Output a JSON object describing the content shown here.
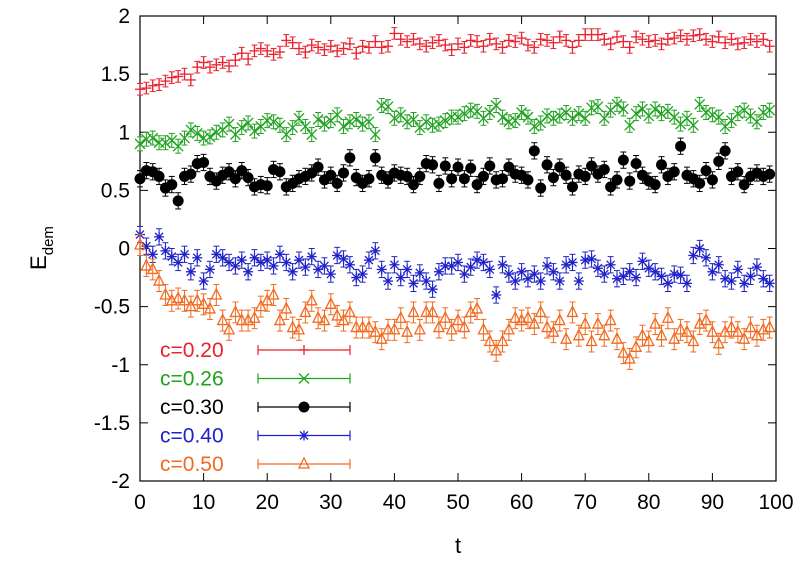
{
  "chart_data": {
    "type": "scatter",
    "xlabel": "t",
    "ylabel_main": "E",
    "ylabel_sub": "dem",
    "xlim": [
      0,
      100
    ],
    "ylim": [
      -2,
      2
    ],
    "xticks": [
      0,
      10,
      20,
      30,
      40,
      50,
      60,
      70,
      80,
      90,
      100
    ],
    "yticks": [
      -2,
      -1.5,
      -1,
      -0.5,
      0,
      0.5,
      1,
      1.5,
      2
    ],
    "legend_position": "bottom-left",
    "x": [
      0,
      1,
      2,
      3,
      4,
      5,
      6,
      7,
      8,
      9,
      10,
      11,
      12,
      13,
      14,
      15,
      16,
      17,
      18,
      19,
      20,
      21,
      22,
      23,
      24,
      25,
      26,
      27,
      28,
      29,
      30,
      31,
      32,
      33,
      34,
      35,
      36,
      37,
      38,
      39,
      40,
      41,
      42,
      43,
      44,
      45,
      46,
      47,
      48,
      49,
      50,
      51,
      52,
      53,
      54,
      55,
      56,
      57,
      58,
      59,
      60,
      61,
      62,
      63,
      64,
      65,
      66,
      67,
      68,
      69,
      70,
      71,
      72,
      73,
      74,
      75,
      76,
      77,
      78,
      79,
      80,
      81,
      82,
      83,
      84,
      85,
      86,
      87,
      88,
      89,
      90,
      91,
      92,
      93,
      94,
      95,
      96,
      97,
      98,
      99
    ],
    "series": [
      {
        "name": "c=0.20",
        "color": "#e8222e",
        "marker": "plus",
        "error": 0.05,
        "values": [
          1.37,
          1.38,
          1.4,
          1.41,
          1.44,
          1.47,
          1.48,
          1.5,
          1.45,
          1.56,
          1.6,
          1.56,
          1.58,
          1.6,
          1.57,
          1.62,
          1.68,
          1.63,
          1.7,
          1.72,
          1.7,
          1.67,
          1.69,
          1.79,
          1.77,
          1.72,
          1.69,
          1.75,
          1.73,
          1.71,
          1.74,
          1.7,
          1.72,
          1.76,
          1.68,
          1.74,
          1.73,
          1.78,
          1.73,
          1.74,
          1.85,
          1.8,
          1.78,
          1.8,
          1.76,
          1.74,
          1.77,
          1.79,
          1.75,
          1.71,
          1.76,
          1.73,
          1.79,
          1.78,
          1.74,
          1.8,
          1.76,
          1.73,
          1.79,
          1.78,
          1.81,
          1.75,
          1.73,
          1.8,
          1.79,
          1.77,
          1.82,
          1.79,
          1.73,
          1.79,
          1.84,
          1.84,
          1.84,
          1.8,
          1.76,
          1.82,
          1.78,
          1.73,
          1.82,
          1.8,
          1.78,
          1.79,
          1.76,
          1.8,
          1.81,
          1.83,
          1.8,
          1.83,
          1.84,
          1.8,
          1.78,
          1.82,
          1.77,
          1.8,
          1.76,
          1.77,
          1.8,
          1.78,
          1.8,
          1.74
        ]
      },
      {
        "name": "c=0.26",
        "color": "#1fa21f",
        "marker": "cross",
        "error": 0.06,
        "values": [
          0.9,
          0.94,
          0.95,
          0.91,
          0.91,
          0.93,
          0.88,
          0.95,
          1.02,
          0.99,
          0.95,
          0.96,
          1.0,
          1.02,
          1.07,
          0.98,
          1.04,
          1.08,
          1.01,
          1.05,
          1.1,
          1.09,
          1.06,
          0.98,
          1.04,
          1.12,
          1.05,
          0.98,
          1.11,
          1.07,
          1.1,
          1.15,
          1.05,
          1.09,
          1.11,
          1.07,
          1.09,
          0.98,
          1.23,
          1.22,
          1.12,
          1.15,
          1.09,
          1.11,
          1.04,
          1.09,
          1.06,
          1.07,
          1.1,
          1.13,
          1.13,
          1.16,
          1.19,
          1.18,
          1.12,
          1.17,
          1.23,
          1.13,
          1.09,
          1.1,
          1.17,
          1.13,
          1.05,
          1.08,
          1.14,
          1.12,
          1.14,
          1.17,
          1.12,
          1.16,
          1.12,
          1.21,
          1.22,
          1.12,
          1.19,
          1.24,
          1.2,
          1.06,
          1.16,
          1.2,
          1.14,
          1.2,
          1.16,
          1.18,
          1.13,
          1.07,
          1.12,
          1.06,
          1.24,
          1.17,
          1.15,
          1.13,
          1.05,
          1.1,
          1.16,
          1.19,
          1.14,
          1.09,
          1.17,
          1.19
        ]
      },
      {
        "name": "c=0.30",
        "color": "#000000",
        "marker": "circle",
        "error": 0.07,
        "values": [
          0.6,
          0.67,
          0.66,
          0.62,
          0.52,
          0.55,
          0.41,
          0.62,
          0.64,
          0.73,
          0.74,
          0.62,
          0.58,
          0.63,
          0.66,
          0.6,
          0.67,
          0.61,
          0.53,
          0.55,
          0.54,
          0.68,
          0.66,
          0.53,
          0.56,
          0.6,
          0.62,
          0.65,
          0.7,
          0.59,
          0.63,
          0.56,
          0.65,
          0.78,
          0.61,
          0.56,
          0.6,
          0.78,
          0.63,
          0.59,
          0.65,
          0.63,
          0.62,
          0.55,
          0.62,
          0.73,
          0.72,
          0.56,
          0.71,
          0.6,
          0.7,
          0.6,
          0.69,
          0.55,
          0.62,
          0.71,
          0.59,
          0.6,
          0.7,
          0.64,
          0.63,
          0.59,
          0.84,
          0.52,
          0.72,
          0.61,
          0.7,
          0.63,
          0.53,
          0.64,
          0.62,
          0.71,
          0.64,
          0.68,
          0.53,
          0.59,
          0.76,
          0.58,
          0.73,
          0.63,
          0.58,
          0.55,
          0.72,
          0.62,
          0.66,
          0.88,
          0.63,
          0.6,
          0.56,
          0.67,
          0.59,
          0.75,
          0.84,
          0.62,
          0.66,
          0.55,
          0.62,
          0.65,
          0.62,
          0.64
        ]
      },
      {
        "name": "c=0.40",
        "color": "#1f22c8",
        "marker": "star",
        "error": 0.07,
        "values": [
          0.12,
          0.02,
          -0.05,
          0.1,
          -0.02,
          -0.07,
          -0.12,
          -0.05,
          -0.2,
          -0.08,
          -0.28,
          -0.18,
          -0.05,
          -0.08,
          -0.12,
          -0.15,
          -0.1,
          -0.2,
          -0.08,
          -0.12,
          -0.1,
          -0.15,
          -0.05,
          -0.12,
          -0.2,
          -0.1,
          -0.16,
          -0.07,
          -0.18,
          -0.15,
          -0.22,
          -0.06,
          -0.09,
          -0.14,
          -0.25,
          -0.22,
          -0.1,
          -0.02,
          -0.18,
          -0.28,
          -0.14,
          -0.25,
          -0.18,
          -0.3,
          -0.21,
          -0.28,
          -0.35,
          -0.2,
          -0.15,
          -0.15,
          -0.12,
          -0.22,
          -0.16,
          -0.1,
          -0.12,
          -0.18,
          -0.4,
          -0.14,
          -0.22,
          -0.28,
          -0.2,
          -0.26,
          -0.22,
          -0.28,
          -0.15,
          -0.2,
          -0.28,
          -0.14,
          -0.12,
          -0.28,
          -0.1,
          -0.09,
          -0.17,
          -0.22,
          -0.14,
          -0.26,
          -0.24,
          -0.2,
          -0.25,
          -0.11,
          -0.17,
          -0.2,
          -0.24,
          -0.3,
          -0.22,
          -0.23,
          -0.3,
          -0.06,
          0.0,
          -0.08,
          -0.2,
          -0.14,
          -0.26,
          -0.28,
          -0.18,
          -0.3,
          -0.24,
          -0.16,
          -0.26,
          -0.3
        ]
      },
      {
        "name": "c=0.50",
        "color": "#f26a1f",
        "marker": "triangle",
        "error": 0.09,
        "values": [
          0.03,
          -0.15,
          -0.18,
          -0.28,
          -0.4,
          -0.45,
          -0.43,
          -0.45,
          -0.5,
          -0.45,
          -0.48,
          -0.52,
          -0.4,
          -0.62,
          -0.7,
          -0.55,
          -0.62,
          -0.62,
          -0.6,
          -0.5,
          -0.45,
          -0.4,
          -0.62,
          -0.52,
          -0.68,
          -0.7,
          -0.55,
          -0.45,
          -0.6,
          -0.62,
          -0.48,
          -0.58,
          -0.62,
          -0.55,
          -0.68,
          -0.68,
          -0.68,
          -0.72,
          -0.78,
          -0.7,
          -0.7,
          -0.6,
          -0.72,
          -0.55,
          -0.7,
          -0.55,
          -0.55,
          -0.68,
          -0.6,
          -0.7,
          -0.62,
          -0.68,
          -0.55,
          -0.52,
          -0.7,
          -0.8,
          -0.88,
          -0.8,
          -0.7,
          -0.6,
          -0.62,
          -0.6,
          -0.65,
          -0.55,
          -0.68,
          -0.72,
          -0.62,
          -0.78,
          -0.55,
          -0.75,
          -0.65,
          -0.8,
          -0.65,
          -0.75,
          -0.62,
          -0.78,
          -0.9,
          -0.95,
          -0.85,
          -0.75,
          -0.8,
          -0.65,
          -0.75,
          -0.6,
          -0.78,
          -0.7,
          -0.72,
          -0.8,
          -0.65,
          -0.62,
          -0.72,
          -0.82,
          -0.72,
          -0.68,
          -0.72,
          -0.78,
          -0.68,
          -0.75,
          -0.7,
          -0.68
        ]
      }
    ]
  }
}
